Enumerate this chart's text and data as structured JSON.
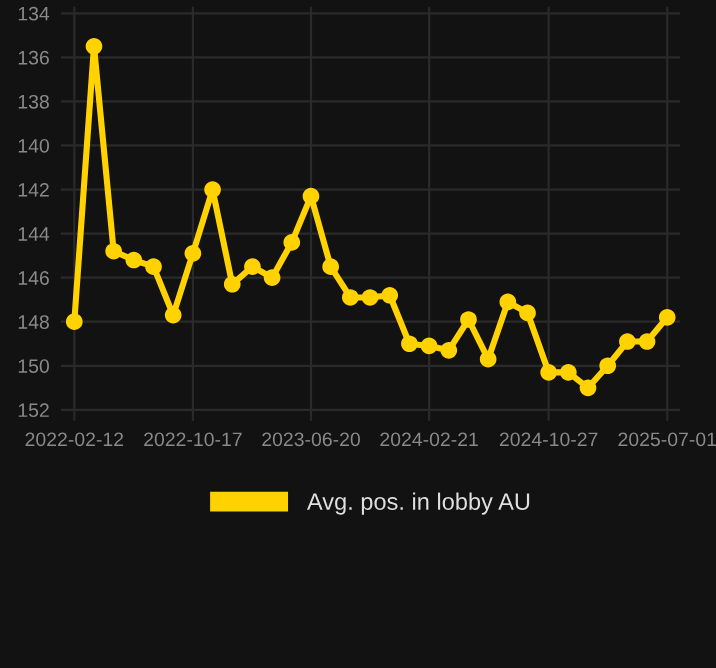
{
  "chart_data": {
    "type": "line",
    "x": [
      "2022-02-12",
      "2022-03-25",
      "2022-05-05",
      "2022-06-16",
      "2022-07-27",
      "2022-09-06",
      "2022-10-17",
      "2022-11-27",
      "2023-01-07",
      "2023-02-18",
      "2023-03-31",
      "2023-05-11",
      "2023-06-20",
      "2023-07-31",
      "2023-09-10",
      "2023-10-21",
      "2023-12-01",
      "2024-01-11",
      "2024-02-21",
      "2024-04-02",
      "2024-05-13",
      "2024-06-23",
      "2024-08-03",
      "2024-09-13",
      "2024-10-27",
      "2024-12-07",
      "2025-01-17",
      "2025-02-27",
      "2025-04-09",
      "2025-05-20",
      "2025-07-01"
    ],
    "series": [
      {
        "name": "Avg. pos. in lobby AU",
        "color": "#ffd200",
        "values": [
          148.0,
          135.5,
          144.8,
          145.2,
          145.5,
          147.7,
          144.9,
          142.0,
          146.3,
          145.5,
          146.0,
          144.4,
          142.3,
          145.5,
          146.9,
          146.9,
          146.8,
          149.0,
          149.1,
          149.3,
          147.9,
          149.7,
          147.1,
          147.6,
          150.3,
          150.3,
          151.0,
          150.0,
          148.9,
          148.9,
          147.8
        ]
      }
    ],
    "ylim": [
      152.5,
      133.7
    ],
    "yticks": [
      134,
      136,
      138,
      140,
      142,
      144,
      146,
      148,
      150,
      152
    ],
    "xlim": [
      "2022-01-15",
      "2025-07-28"
    ],
    "xticks": [
      "2022-02-12",
      "2022-10-17",
      "2023-06-20",
      "2024-02-21",
      "2024-10-27",
      "2025-07-01"
    ],
    "grid": true,
    "legend": "bottom",
    "marker": "circle",
    "line_style": "solid"
  }
}
